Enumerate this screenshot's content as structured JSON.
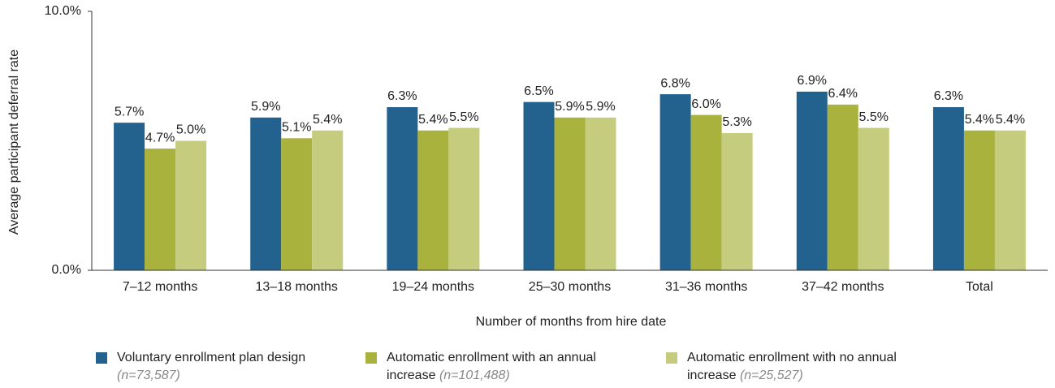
{
  "chart_data": {
    "type": "bar",
    "y_label": "Average participant deferral rate",
    "x_label": "Number of months from hire date",
    "categories": [
      "7–12 months",
      "13–18 months",
      "19–24 months",
      "25–30 months",
      "31–36 months",
      "37–42 months",
      "Total"
    ],
    "series": [
      {
        "name": "Voluntary enrollment plan design",
        "n": "(n=73,587)",
        "color": "#23618e",
        "values": [
          5.7,
          5.9,
          6.3,
          6.5,
          6.8,
          6.9,
          6.3
        ],
        "value_labels": [
          "5.7%",
          "5.9%",
          "6.3%",
          "6.5%",
          "6.8%",
          "6.9%",
          "6.3%"
        ]
      },
      {
        "name": "Automatic enrollment with an annual increase",
        "n": "(n=101,488)",
        "color": "#a8b23d",
        "values": [
          4.7,
          5.1,
          5.4,
          5.9,
          6.0,
          6.4,
          5.4
        ],
        "value_labels": [
          "4.7%",
          "5.1%",
          "5.4%",
          "5.9%",
          "6.0%",
          "6.4%",
          "5.4%"
        ]
      },
      {
        "name": "Automatic enrollment with no annual increase",
        "n": "(n=25,527)",
        "color": "#c5cc7d",
        "values": [
          5.0,
          5.4,
          5.5,
          5.9,
          5.3,
          5.5,
          5.4
        ],
        "value_labels": [
          "5.0%",
          "5.4%",
          "5.5%",
          "5.9%",
          "5.3%",
          "5.5%",
          "5.4%"
        ]
      }
    ],
    "ylim": [
      0,
      10
    ],
    "yticks": [
      {
        "value": 0,
        "label": "0.0%"
      },
      {
        "value": 10,
        "label": "10.0%"
      }
    ],
    "grid": false
  }
}
